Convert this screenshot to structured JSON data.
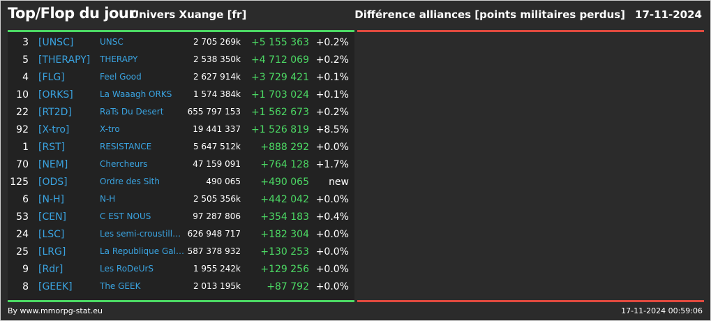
{
  "header": {
    "title": "Top/Flop du jour",
    "subtitle": "Univers Xuange [fr]",
    "ranking_title": "Différence alliances [points militaires perdus]",
    "date": "17-11-2024"
  },
  "colors": {
    "top_accent": "#4cd964",
    "flop_accent": "#e04a3f",
    "tag_color": "#3aa3e0"
  },
  "rows": [
    {
      "rank": "3",
      "tag": "[UNSC]",
      "name": "UNSC",
      "points": "2 705 269k",
      "diff": "+5 155 363",
      "pct": "+0.2%"
    },
    {
      "rank": "5",
      "tag": "[THERAPY]",
      "name": "THERAPY",
      "points": "2 538 350k",
      "diff": "+4 712 069",
      "pct": "+0.2%"
    },
    {
      "rank": "4",
      "tag": "[FLG]",
      "name": "Feel Good",
      "points": "2 627 914k",
      "diff": "+3 729 421",
      "pct": "+0.1%"
    },
    {
      "rank": "10",
      "tag": "[ORKS]",
      "name": "La Waaagh ORKS",
      "points": "1 574 384k",
      "diff": "+1 703 024",
      "pct": "+0.1%"
    },
    {
      "rank": "22",
      "tag": "[RT2D]",
      "name": "RaTs Du Desert",
      "points": "655 797 153",
      "diff": "+1 562 673",
      "pct": "+0.2%"
    },
    {
      "rank": "92",
      "tag": "[X-tro]",
      "name": "X-tro",
      "points": "19 441 337",
      "diff": "+1 526 819",
      "pct": "+8.5%"
    },
    {
      "rank": "1",
      "tag": "[RST]",
      "name": "RESISTANCE",
      "points": "5 647 512k",
      "diff": "+888 292",
      "pct": "+0.0%"
    },
    {
      "rank": "70",
      "tag": "[NEM]",
      "name": "Chercheurs",
      "points": "47 159 091",
      "diff": "+764 128",
      "pct": "+1.7%"
    },
    {
      "rank": "125",
      "tag": "[ODS]",
      "name": "Ordre des Sith",
      "points": "490 065",
      "diff": "+490 065",
      "pct": "new"
    },
    {
      "rank": "6",
      "tag": "[N-H]",
      "name": "N-H",
      "points": "2 505 356k",
      "diff": "+442 042",
      "pct": "+0.0%"
    },
    {
      "rank": "53",
      "tag": "[CEN]",
      "name": "C EST NOUS",
      "points": "97 287 806",
      "diff": "+354 183",
      "pct": "+0.4%"
    },
    {
      "rank": "24",
      "tag": "[LSC]",
      "name": "Les semi-croustillants",
      "points": "626 948 717",
      "diff": "+182 304",
      "pct": "+0.0%"
    },
    {
      "rank": "25",
      "tag": "[LRG]",
      "name": "La Republique Galactique",
      "points": "587 378 932",
      "diff": "+130 253",
      "pct": "+0.0%"
    },
    {
      "rank": "9",
      "tag": "[Rdr]",
      "name": "Les RoDeUrS",
      "points": "1 955 242k",
      "diff": "+129 256",
      "pct": "+0.0%"
    },
    {
      "rank": "8",
      "tag": "[GEEK]",
      "name": "The GEEK",
      "points": "2 013 195k",
      "diff": "+87 792",
      "pct": "+0.0%"
    }
  ],
  "footer": {
    "credit": "By www.mmorpg-stat.eu",
    "timestamp": "17-11-2024 00:59:06"
  }
}
